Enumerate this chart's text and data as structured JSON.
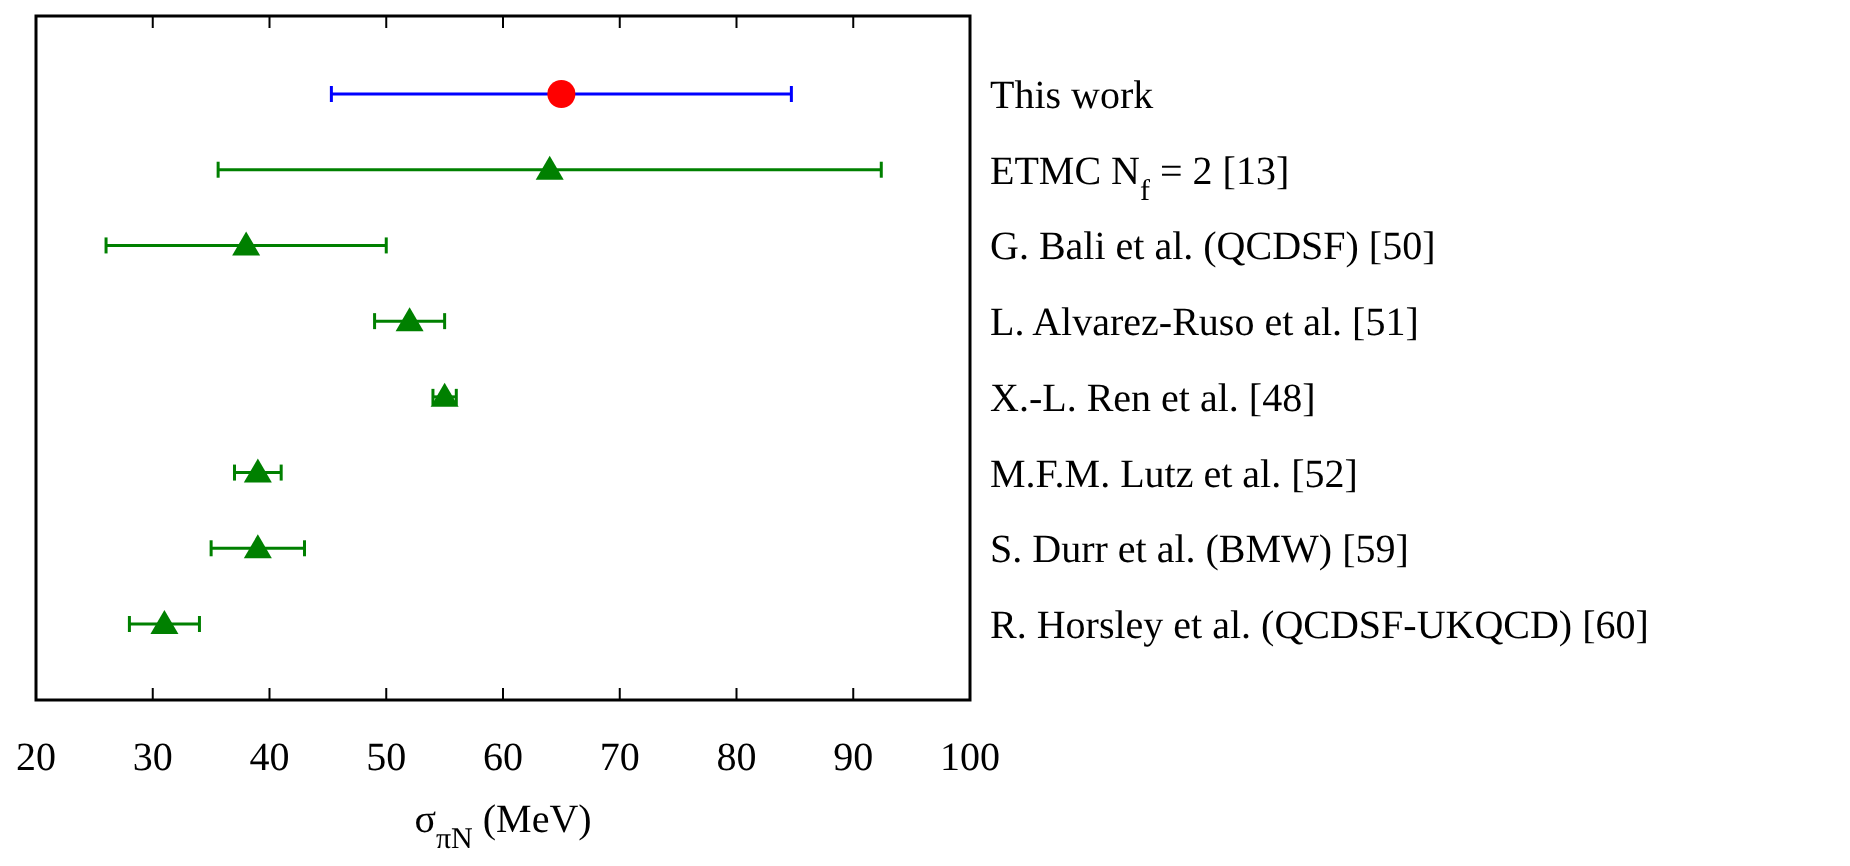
{
  "chart_data": {
    "type": "scatter",
    "orientation": "horizontal",
    "xlabel": "σ$_{πN}$ (MeV)",
    "categories": [
      "This work",
      "ETMC N$_{f}$ = 2 [13]",
      "G. Bali et al. (QCDSF) [50]",
      "L. Alvarez-Ruso et al. [51]",
      "X.-L. Ren et al. [48]",
      "M.F.M. Lutz et al. [52]",
      "S. Durr et al. (BMW) [59]",
      "R. Horsley et al. (QCDSF-UKQCD) [60]"
    ],
    "series": [
      {
        "color": "#ff0000",
        "marker": "circle",
        "values": [
          65,
          null,
          null,
          null,
          null,
          null,
          null,
          null
        ],
        "errors": [
          19.7,
          null,
          null,
          null,
          null,
          null,
          null,
          null
        ]
      },
      {
        "color": "#008000",
        "marker": "triangle",
        "values": [
          null,
          64,
          38,
          52,
          55,
          39,
          39,
          31
        ],
        "errors": [
          null,
          28.4,
          12,
          3,
          1,
          2,
          4,
          3
        ]
      }
    ],
    "xlim": [
      20,
      100
    ],
    "xticks": [
      20,
      30,
      40,
      50,
      60,
      70,
      80,
      90,
      100
    ],
    "grid": false
  }
}
